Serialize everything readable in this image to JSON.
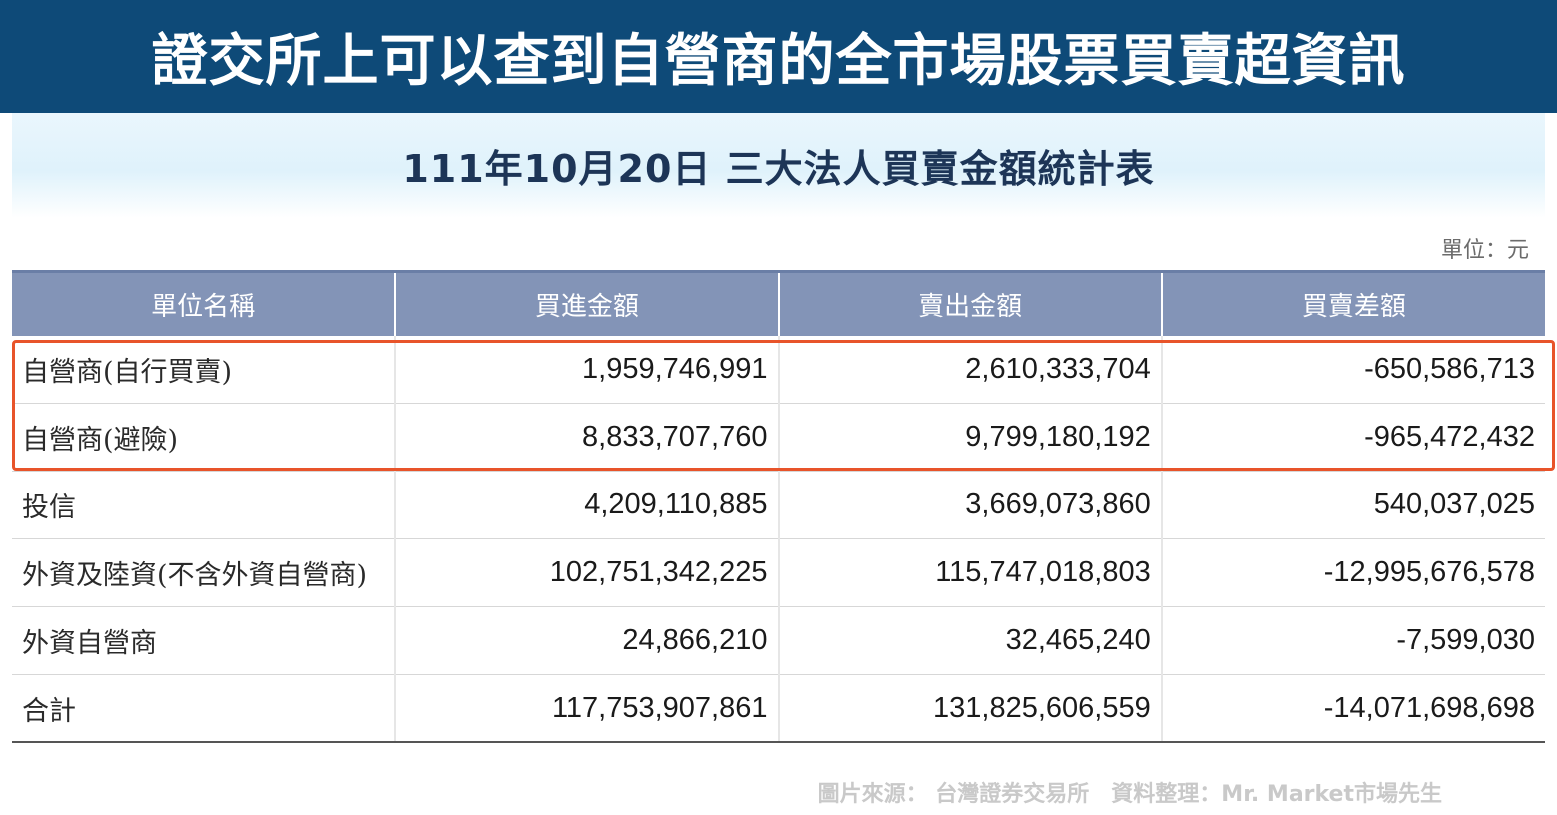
{
  "banner": {
    "title": "證交所上可以查到自營商的全市場股票買賣超資訊"
  },
  "table": {
    "title": "111年10月20日 三大法人買賣金額統計表",
    "unit": "單位：元",
    "columns": [
      "單位名稱",
      "買進金額",
      "賣出金額",
      "買賣差額"
    ],
    "rows": [
      {
        "name": "自營商(自行買賣)",
        "buy": "1,959,746,991",
        "sell": "2,610,333,704",
        "diff": "-650,586,713"
      },
      {
        "name": "自營商(避險)",
        "buy": "8,833,707,760",
        "sell": "9,799,180,192",
        "diff": "-965,472,432"
      },
      {
        "name": "投信",
        "buy": "4,209,110,885",
        "sell": "3,669,073,860",
        "diff": "540,037,025"
      },
      {
        "name": "外資及陸資(不含外資自營商)",
        "buy": "102,751,342,225",
        "sell": "115,747,018,803",
        "diff": "-12,995,676,578"
      },
      {
        "name": "外資自營商",
        "buy": "24,866,210",
        "sell": "32,465,240",
        "diff": "-7,599,030"
      },
      {
        "name": "合計",
        "buy": "117,753,907,861",
        "sell": "131,825,606,559",
        "diff": "-14,071,698,698"
      }
    ]
  },
  "source": "圖片來源： 台灣證券交易所　資料整理：Mr. Market市場先生",
  "colors": {
    "banner": "#0e4a78",
    "header_row": "#8394b7",
    "highlight": "#e8542a"
  }
}
